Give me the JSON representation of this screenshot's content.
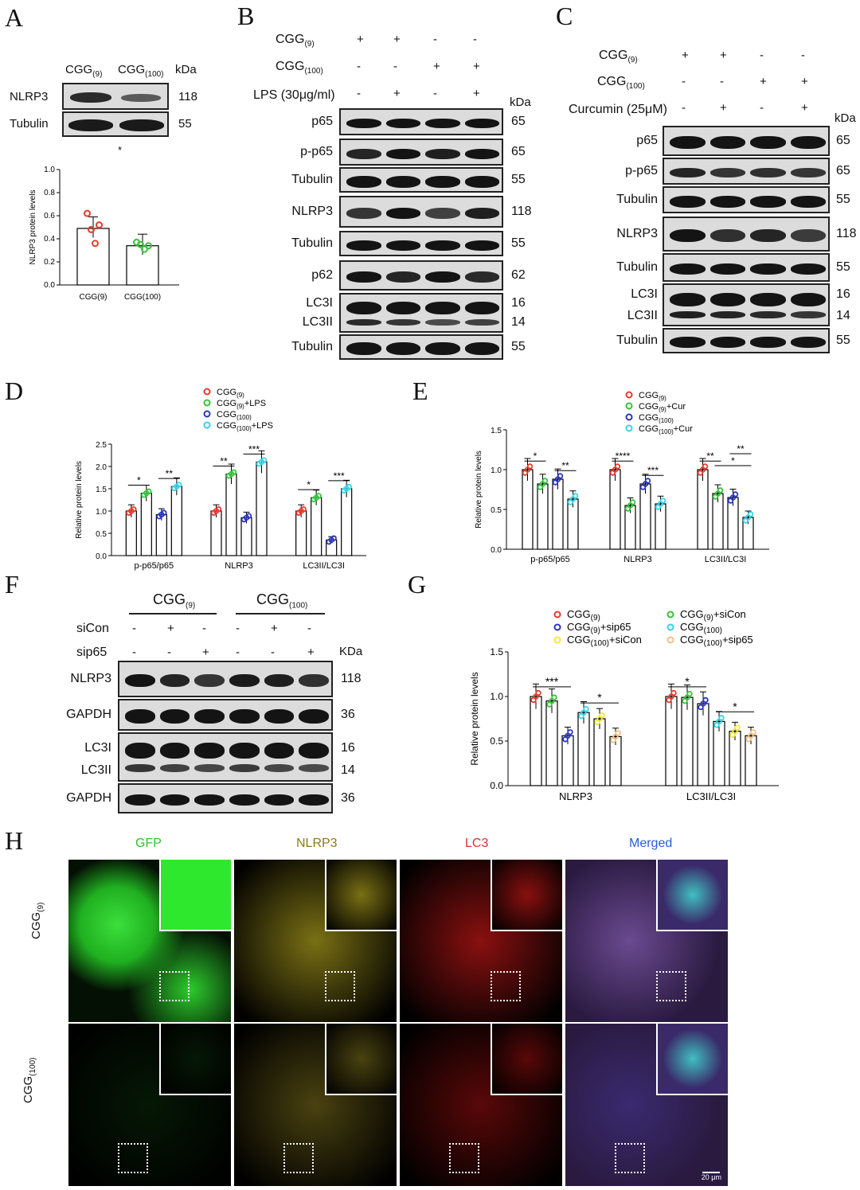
{
  "panels": {
    "A": "A",
    "B": "B",
    "C": "C",
    "D": "D",
    "E": "E",
    "F": "F",
    "G": "G",
    "H": "H"
  },
  "common": {
    "kda": "kDa",
    "kda_f": "KDa",
    "cgg": "CGG",
    "sub9": "(9)",
    "sub100": "(100)",
    "plus": "+",
    "minus": "-"
  },
  "panelA": {
    "rows": [
      {
        "name": "NLRP3",
        "kda": "118"
      },
      {
        "name": "Tubulin",
        "kda": "55"
      }
    ],
    "sig": "*",
    "chart_data": {
      "type": "bar",
      "categories": [
        "CGG(9)",
        "CGG(100)"
      ],
      "values": [
        0.49,
        0.34
      ],
      "points": [
        [
          0.62,
          0.48,
          0.36,
          0.52
        ],
        [
          0.37,
          0.35,
          0.31,
          0.34
        ]
      ],
      "ylabel": "NLRP3 protein levels",
      "ylim": [
        0,
        1.0
      ],
      "yticks": [
        "0.0",
        "0.2",
        "0.4",
        "0.6",
        "0.8",
        "1.0"
      ],
      "colors": [
        "#e63b2e",
        "#35c43a"
      ]
    }
  },
  "panelB": {
    "cond": [
      {
        "label": "CGG",
        "sub": "(9)",
        "vals": [
          "+",
          "+",
          "-",
          "-"
        ]
      },
      {
        "label": "CGG",
        "sub": "(100)",
        "vals": [
          "-",
          "-",
          "+",
          "+"
        ]
      },
      {
        "label": "LPS (30μg/ml)",
        "sub": "",
        "vals": [
          "-",
          "+",
          "-",
          "+"
        ]
      }
    ],
    "rows": [
      {
        "name": "p65",
        "kda": "65"
      },
      {
        "name": "p-p65",
        "kda": "65"
      },
      {
        "name": "Tubulin",
        "kda": "55"
      },
      {
        "name": "NLRP3",
        "kda": "118"
      },
      {
        "name": "Tubulin",
        "kda": "55"
      },
      {
        "name": "p62",
        "kda": "62"
      },
      {
        "name": "LC3I",
        "kda": "16"
      },
      {
        "name": "LC3II",
        "kda": "14"
      },
      {
        "name": "Tubulin",
        "kda": "55"
      }
    ]
  },
  "panelC": {
    "cond": [
      {
        "label": "CGG",
        "sub": "(9)",
        "vals": [
          "+",
          "+",
          "-",
          "-"
        ]
      },
      {
        "label": "CGG",
        "sub": "(100)",
        "vals": [
          "-",
          "-",
          "+",
          "+"
        ]
      },
      {
        "label": "Curcumin (25μM)",
        "sub": "",
        "vals": [
          "-",
          "+",
          "-",
          "+"
        ]
      }
    ],
    "rows": [
      {
        "name": "p65",
        "kda": "65"
      },
      {
        "name": "p-p65",
        "kda": "65"
      },
      {
        "name": "Tubulin",
        "kda": "55"
      },
      {
        "name": "NLRP3",
        "kda": "118"
      },
      {
        "name": "Tubulin",
        "kda": "55"
      },
      {
        "name": "LC3I",
        "kda": "16"
      },
      {
        "name": "LC3II",
        "kda": "14"
      },
      {
        "name": "Tubulin",
        "kda": "55"
      }
    ]
  },
  "chart_data": [
    {
      "id": "D",
      "type": "bar",
      "ylabel": "Relative protein levels",
      "ylim": [
        0,
        2.5
      ],
      "yticks": [
        "0.0",
        "0.5",
        "1.0",
        "1.5",
        "2.0",
        "2.5"
      ],
      "categories": [
        "p-p65/p65",
        "NLRP3",
        "LC3II/LC3I"
      ],
      "legend": [
        "CGG(9)",
        "CGG(9)+LPS",
        "CGG(100)",
        "CGG(100)+LPS"
      ],
      "colors": [
        "#e63b2e",
        "#35c43a",
        "#2b35c4",
        "#35d4e6"
      ],
      "values": [
        [
          1.0,
          1.4,
          0.92,
          1.55
        ],
        [
          1.0,
          1.83,
          0.85,
          2.1
        ],
        [
          1.0,
          1.3,
          0.35,
          1.5
        ]
      ],
      "sig": [
        [
          "*",
          "**"
        ],
        [
          "**",
          "***"
        ],
        [
          "*",
          "***"
        ]
      ]
    },
    {
      "id": "E",
      "type": "bar",
      "ylabel": "Relative protein levels",
      "ylim": [
        0,
        1.5
      ],
      "yticks": [
        "0.0",
        "0.5",
        "1.0",
        "1.5"
      ],
      "categories": [
        "p-p65/p65",
        "NLRP3",
        "LC3II/LC3I"
      ],
      "legend": [
        "CGG(9)",
        "CGG(9)+Cur",
        "CGG(100)",
        "CGG(100)+Cur"
      ],
      "colors": [
        "#e63b2e",
        "#35c43a",
        "#2b35c4",
        "#35d4e6"
      ],
      "values": [
        [
          1.0,
          0.82,
          0.88,
          0.63
        ],
        [
          1.0,
          0.55,
          0.82,
          0.57
        ],
        [
          1.0,
          0.7,
          0.65,
          0.4
        ]
      ],
      "sig": [
        [
          "*",
          "**"
        ],
        [
          "****",
          "***"
        ],
        [
          "**",
          "**",
          "*"
        ]
      ]
    },
    {
      "id": "G",
      "type": "bar",
      "ylabel": "Relative protein levels",
      "ylim": [
        0,
        1.5
      ],
      "yticks": [
        "0.0",
        "0.5",
        "1.0",
        "1.5"
      ],
      "categories": [
        "NLRP3",
        "LC3II/LC3I"
      ],
      "legend": [
        "CGG(9)",
        "CGG(9)+siCon",
        "CGG(9)+sip65",
        "CGG(100)",
        "CGG(100)+siCon",
        "CGG(100)+sip65"
      ],
      "colors": [
        "#e63b2e",
        "#35c43a",
        "#2b35c4",
        "#35d4e6",
        "#f2e83a",
        "#f0c08a"
      ],
      "values": [
        [
          1.0,
          0.95,
          0.56,
          0.82,
          0.75,
          0.55
        ],
        [
          1.0,
          0.99,
          0.92,
          0.72,
          0.61,
          0.56
        ]
      ],
      "sig": [
        [
          "***",
          "*"
        ],
        [
          "*",
          "*"
        ]
      ]
    }
  ],
  "panelF": {
    "groups": [
      {
        "label": "CGG",
        "sub": "(9)"
      },
      {
        "label": "CGG",
        "sub": "(100)"
      }
    ],
    "cond": [
      {
        "label": "siCon",
        "vals": [
          "-",
          "+",
          "-",
          "-",
          "+",
          "-"
        ]
      },
      {
        "label": "sip65",
        "vals": [
          "-",
          "-",
          "+",
          "-",
          "-",
          "+"
        ]
      }
    ],
    "rows": [
      {
        "name": "NLRP3",
        "kda": "118"
      },
      {
        "name": "GAPDH",
        "kda": "36"
      },
      {
        "name": "LC3I",
        "kda": "16"
      },
      {
        "name": "LC3II",
        "kda": "14"
      },
      {
        "name": "GAPDH",
        "kda": "36"
      }
    ]
  },
  "panelH": {
    "channels": [
      "GFP",
      "NLRP3",
      "LC3",
      "Merged"
    ],
    "channel_colors": [
      "#2fc22f",
      "#8a7a16",
      "#e0302e",
      "#2a5bd6"
    ],
    "rows": [
      {
        "label": "CGG",
        "sub": "(9)"
      },
      {
        "label": "CGG",
        "sub": "(100)"
      }
    ],
    "scale": "20 μm"
  }
}
